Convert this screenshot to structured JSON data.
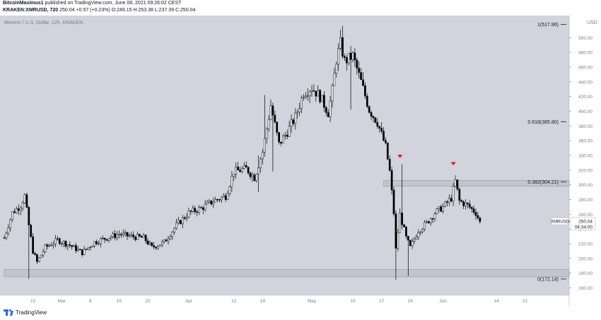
{
  "header": {
    "author": "BitcoinMaximus1",
    "published_text": "published on TradingView.com, June 08, 2021 09:26:02 CEST",
    "symbol_line": "KRAKEN:XMRUSD, 720",
    "last": "250.04",
    "change": "+0.57 (+0.23%)",
    "ohlc": "O:249.15 H:253.38 L:237.39 C:250.04"
  },
  "chart_data": {
    "type": "candlestick",
    "title": "Monero / U.S. Dollar, 12h, KRAKEN",
    "currency_label": "USD",
    "ylim": [
      150,
      530
    ],
    "yticks": [
      160,
      180,
      200,
      220,
      240,
      260,
      280,
      300,
      320,
      340,
      360,
      380,
      400,
      420,
      440,
      460,
      480,
      500
    ],
    "xlabels": [
      {
        "label": "22",
        "i": 14
      },
      {
        "label": "Mar",
        "i": 28
      },
      {
        "label": "8",
        "i": 42
      },
      {
        "label": "15",
        "i": 56
      },
      {
        "label": "22",
        "i": 70
      },
      {
        "label": "Apr",
        "i": 90
      },
      {
        "label": "12",
        "i": 112
      },
      {
        "label": "19",
        "i": 126
      },
      {
        "label": "May",
        "i": 150
      },
      {
        "label": "10",
        "i": 170
      },
      {
        "label": "17",
        "i": 184
      },
      {
        "label": "24",
        "i": 198
      },
      {
        "label": "Jun",
        "i": 214
      },
      {
        "label": "14",
        "i": 240
      },
      {
        "label": "21",
        "i": 254
      }
    ],
    "fib_levels": [
      {
        "label": "1(517.86)",
        "value": 517.86
      },
      {
        "label": "0.618(385.80)",
        "value": 385.8
      },
      {
        "label": "0.382(304.21)",
        "value": 304.21
      },
      {
        "label": "0(172.14)",
        "value": 172.14
      }
    ],
    "zones": [
      {
        "name": "resistance",
        "from": 298,
        "to": 306,
        "start_i": 185
      },
      {
        "name": "support",
        "from": 175,
        "to": 185,
        "start_i": 0
      }
    ],
    "markers": [
      {
        "i": 193,
        "value": 338
      },
      {
        "i": 219,
        "value": 328
      }
    ],
    "last_price": {
      "symbol": "XMRUSD",
      "value": "250.04",
      "countdown": "04:34:00"
    },
    "anchors": [
      {
        "i": 0,
        "v": 228
      },
      {
        "i": 4,
        "v": 262
      },
      {
        "i": 8,
        "v": 272
      },
      {
        "i": 10,
        "v": 285
      },
      {
        "i": 12,
        "v": 245
      },
      {
        "i": 14,
        "v": 210
      },
      {
        "i": 16,
        "v": 195
      },
      {
        "i": 20,
        "v": 215
      },
      {
        "i": 26,
        "v": 225
      },
      {
        "i": 32,
        "v": 218
      },
      {
        "i": 38,
        "v": 208
      },
      {
        "i": 44,
        "v": 222
      },
      {
        "i": 50,
        "v": 228
      },
      {
        "i": 56,
        "v": 233
      },
      {
        "i": 62,
        "v": 230
      },
      {
        "i": 68,
        "v": 228
      },
      {
        "i": 72,
        "v": 215
      },
      {
        "i": 78,
        "v": 222
      },
      {
        "i": 84,
        "v": 245
      },
      {
        "i": 90,
        "v": 262
      },
      {
        "i": 96,
        "v": 268
      },
      {
        "i": 102,
        "v": 278
      },
      {
        "i": 108,
        "v": 285
      },
      {
        "i": 112,
        "v": 318
      },
      {
        "i": 118,
        "v": 322
      },
      {
        "i": 122,
        "v": 310
      },
      {
        "i": 126,
        "v": 345
      },
      {
        "i": 130,
        "v": 408
      },
      {
        "i": 134,
        "v": 355
      },
      {
        "i": 138,
        "v": 372
      },
      {
        "i": 142,
        "v": 392
      },
      {
        "i": 146,
        "v": 425
      },
      {
        "i": 150,
        "v": 432
      },
      {
        "i": 154,
        "v": 420
      },
      {
        "i": 158,
        "v": 398
      },
      {
        "i": 160,
        "v": 428
      },
      {
        "i": 162,
        "v": 470
      },
      {
        "i": 164,
        "v": 492
      },
      {
        "i": 166,
        "v": 468
      },
      {
        "i": 170,
        "v": 475
      },
      {
        "i": 174,
        "v": 440
      },
      {
        "i": 178,
        "v": 402
      },
      {
        "i": 182,
        "v": 385
      },
      {
        "i": 186,
        "v": 352
      },
      {
        "i": 188,
        "v": 318
      },
      {
        "i": 190,
        "v": 262
      },
      {
        "i": 191,
        "v": 212
      },
      {
        "i": 193,
        "v": 260
      },
      {
        "i": 196,
        "v": 228
      },
      {
        "i": 198,
        "v": 215
      },
      {
        "i": 202,
        "v": 238
      },
      {
        "i": 206,
        "v": 248
      },
      {
        "i": 210,
        "v": 262
      },
      {
        "i": 214,
        "v": 270
      },
      {
        "i": 218,
        "v": 282
      },
      {
        "i": 220,
        "v": 305
      },
      {
        "i": 222,
        "v": 278
      },
      {
        "i": 226,
        "v": 272
      },
      {
        "i": 230,
        "v": 262
      },
      {
        "i": 232,
        "v": 250
      }
    ],
    "spikes": [
      {
        "i": 12,
        "low": 172
      },
      {
        "i": 124,
        "high": 340,
        "low": 290
      },
      {
        "i": 127,
        "high": 422
      },
      {
        "i": 131,
        "low": 318
      },
      {
        "i": 165,
        "high": 516
      },
      {
        "i": 169,
        "low": 402
      },
      {
        "i": 191,
        "low": 171
      },
      {
        "i": 194,
        "high": 328
      },
      {
        "i": 197,
        "low": 176
      },
      {
        "i": 220,
        "high": 313
      }
    ]
  },
  "footer": {
    "brand": "TradingView"
  }
}
